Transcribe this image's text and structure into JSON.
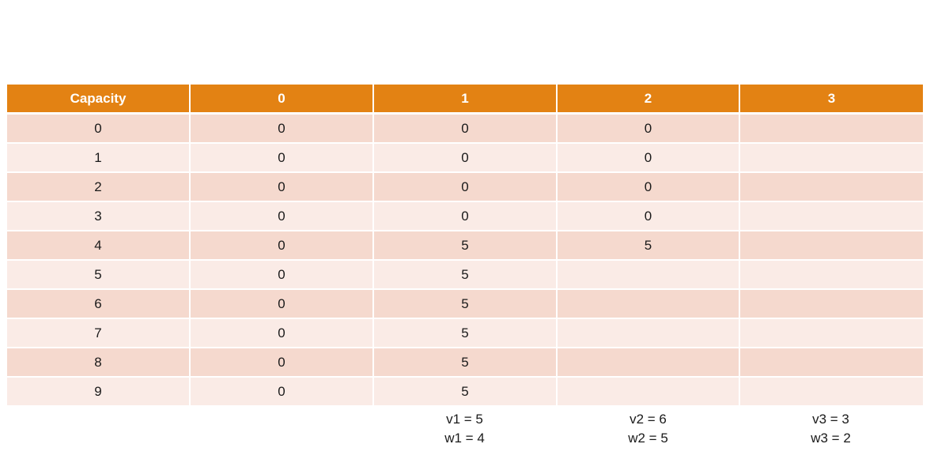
{
  "table": {
    "headers": [
      "Capacity",
      "0",
      "1",
      "2",
      "3"
    ],
    "rows": [
      [
        "0",
        "0",
        "0",
        "0",
        ""
      ],
      [
        "1",
        "0",
        "0",
        "0",
        ""
      ],
      [
        "2",
        "0",
        "0",
        "0",
        ""
      ],
      [
        "3",
        "0",
        "0",
        "0",
        ""
      ],
      [
        "4",
        "0",
        "5",
        "5",
        ""
      ],
      [
        "5",
        "0",
        "5",
        "",
        ""
      ],
      [
        "6",
        "0",
        "5",
        "",
        ""
      ],
      [
        "7",
        "0",
        "5",
        "",
        ""
      ],
      [
        "8",
        "0",
        "5",
        "",
        ""
      ],
      [
        "9",
        "0",
        "5",
        "",
        ""
      ]
    ]
  },
  "items": [
    {
      "value_label": "v1 = 5",
      "weight_label": "w1 = 4"
    },
    {
      "value_label": "v2 = 6",
      "weight_label": "w2 = 5"
    },
    {
      "value_label": "v3 = 3",
      "weight_label": "w3 = 2"
    }
  ],
  "colors": {
    "header_bg": "#e38213",
    "row_dark": "#f5d9ce",
    "row_light": "#faebe6"
  }
}
